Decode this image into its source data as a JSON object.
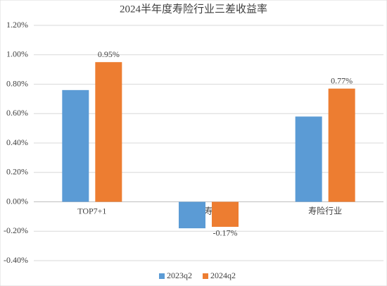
{
  "chart_data": {
    "type": "bar",
    "title": "2024半年度寿险行业三差收益率",
    "categories": [
      "TOP7+1",
      "中小型寿险公司",
      "寿险行业"
    ],
    "series": [
      {
        "name": "2023q2",
        "color": "#5b9bd5",
        "values": [
          0.76,
          -0.18,
          0.58
        ]
      },
      {
        "name": "2024q2",
        "color": "#ed7d31",
        "values": [
          0.95,
          -0.17,
          0.77
        ],
        "value_labels": [
          "0.95%",
          "-0.17%",
          "0.77%"
        ]
      }
    ],
    "ylim": [
      -0.4,
      1.2
    ],
    "yticks": [
      {
        "value": -0.4,
        "label": "-0.40%"
      },
      {
        "value": -0.2,
        "label": "-0.20%"
      },
      {
        "value": 0,
        "label": "0.00%"
      },
      {
        "value": 0.2,
        "label": "0.20%"
      },
      {
        "value": 0.4,
        "label": "0.40%"
      },
      {
        "value": 0.6,
        "label": "0.60%"
      },
      {
        "value": 0.8,
        "label": "0.80%"
      },
      {
        "value": 1.0,
        "label": "1.00%"
      },
      {
        "value": 1.2,
        "label": "1.20%"
      }
    ],
    "grid": true
  }
}
